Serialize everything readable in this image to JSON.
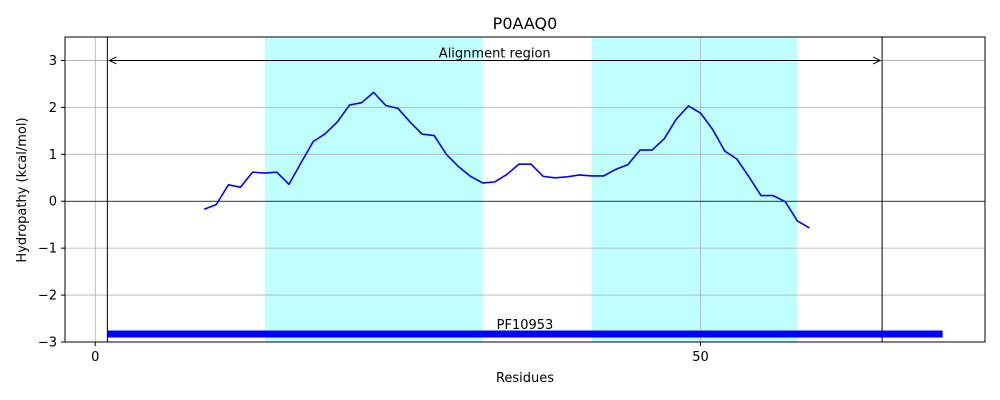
{
  "chart_data": {
    "type": "line",
    "title": "P0AAQ0",
    "xlabel": "Residues",
    "ylabel": "Hydropathy (kcal/mol)",
    "xlim": [
      -2.5,
      73.5
    ],
    "ylim": [
      -3,
      3.5
    ],
    "xticks": [
      0,
      50
    ],
    "yticks": [
      -3,
      -2,
      -1,
      0,
      1,
      2,
      3
    ],
    "ytick_labels": [
      "−3",
      "−2",
      "−1",
      "0",
      "1",
      "2",
      "3"
    ],
    "grid": true,
    "line_color": "#0000ff",
    "series": [
      {
        "x": [
          9,
          10,
          11,
          12,
          13,
          14,
          15,
          16,
          17,
          18,
          19,
          20,
          21,
          22,
          23,
          24,
          25,
          26,
          27,
          28,
          29,
          30,
          31,
          32,
          33,
          34,
          35,
          36,
          37,
          38,
          39,
          40,
          41,
          42,
          43,
          44,
          45,
          46,
          47,
          48,
          49,
          50,
          51,
          52,
          53,
          54,
          55,
          56,
          57,
          58,
          59
        ],
        "values": [
          -0.17,
          -0.07,
          0.35,
          0.3,
          0.62,
          0.6,
          0.62,
          0.36,
          0.82,
          1.27,
          1.44,
          1.69,
          2.05,
          2.1,
          2.32,
          2.04,
          1.98,
          1.69,
          1.43,
          1.4,
          1.0,
          0.74,
          0.53,
          0.39,
          0.41,
          0.57,
          0.79,
          0.79,
          0.53,
          0.5,
          0.52,
          0.56,
          0.54,
          0.54,
          0.68,
          0.78,
          1.09,
          1.09,
          1.33,
          1.75,
          2.03,
          1.88,
          1.53,
          1.07,
          0.9,
          0.52,
          0.12,
          0.12,
          -0.01,
          -0.42,
          -0.57
        ]
      }
    ],
    "shaded_regions": {
      "color": "#bfffff",
      "ranges": [
        [
          14,
          32
        ],
        [
          41,
          58
        ]
      ]
    },
    "vertical_lines": [
      1,
      65
    ],
    "alignment_region": {
      "label": "Alignment region",
      "from": 1,
      "to": 65,
      "y": 3
    },
    "domain_bar": {
      "label": "PF10953",
      "from": 1,
      "to": 70,
      "y": -2.83,
      "color": "#0000ff"
    }
  }
}
